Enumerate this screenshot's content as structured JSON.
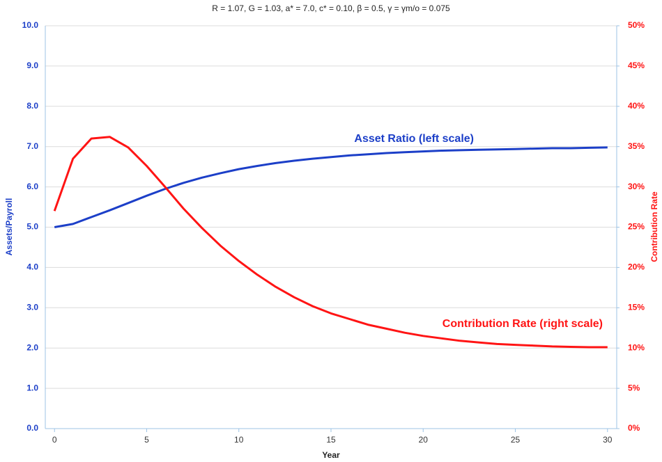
{
  "chart_data": {
    "type": "line",
    "title": "R = 1.07, G = 1.03, a* = 7.0, c* = 0.10, β = 0.5, γ = γm/o = 0.075",
    "x_label": "Year",
    "y_label": "Assets/Payroll",
    "y2_label": "Contribution Rate",
    "x": [
      0,
      1,
      2,
      3,
      4,
      5,
      6,
      7,
      8,
      9,
      10,
      11,
      12,
      13,
      14,
      15,
      16,
      17,
      18,
      19,
      20,
      21,
      22,
      23,
      24,
      25,
      26,
      27,
      28,
      29,
      30
    ],
    "xlim": [
      -0.5,
      30.5
    ],
    "xticks": [
      0,
      5,
      10,
      15,
      20,
      25,
      30
    ],
    "ylim": [
      0,
      10
    ],
    "yticks": [
      {
        "value": 0,
        "label": "0.0"
      },
      {
        "value": 1,
        "label": "1.0"
      },
      {
        "value": 2,
        "label": "2.0"
      },
      {
        "value": 3,
        "label": "3.0"
      },
      {
        "value": 4,
        "label": "4.0"
      },
      {
        "value": 5,
        "label": "5.0"
      },
      {
        "value": 6,
        "label": "6.0"
      },
      {
        "value": 7,
        "label": "7.0"
      },
      {
        "value": 8,
        "label": "8.0"
      },
      {
        "value": 9,
        "label": "9.0"
      },
      {
        "value": 10,
        "label": "10.0"
      }
    ],
    "y2lim": [
      0,
      50
    ],
    "y2ticks": [
      {
        "value": 0,
        "label": "0%"
      },
      {
        "value": 5,
        "label": "5%"
      },
      {
        "value": 10,
        "label": "10%"
      },
      {
        "value": 15,
        "label": "15%"
      },
      {
        "value": 20,
        "label": "20%"
      },
      {
        "value": 25,
        "label": "25%"
      },
      {
        "value": 30,
        "label": "30%"
      },
      {
        "value": 35,
        "label": "35%"
      },
      {
        "value": 40,
        "label": "40%"
      },
      {
        "value": 45,
        "label": "45%"
      },
      {
        "value": 50,
        "label": "50%"
      }
    ],
    "grid": true,
    "series": [
      {
        "name": "Asset Ratio (left scale)",
        "color": "#1c3fc8",
        "values": [
          5.0,
          5.08,
          5.25,
          5.42,
          5.6,
          5.78,
          5.95,
          6.1,
          6.23,
          6.34,
          6.44,
          6.52,
          6.59,
          6.65,
          6.7,
          6.74,
          6.78,
          6.81,
          6.84,
          6.86,
          6.88,
          6.9,
          6.91,
          6.92,
          6.93,
          6.94,
          6.95,
          6.96,
          6.96,
          6.97,
          6.98
        ]
      },
      {
        "name": "Contribution Rate (right scale)",
        "color": "#ff1414",
        "axis": "y2",
        "values": [
          27,
          33.5,
          36,
          36.2,
          34.9,
          32.6,
          30,
          27.3,
          24.9,
          22.7,
          20.8,
          19.1,
          17.6,
          16.3,
          15.2,
          14.3,
          13.6,
          12.9,
          12.4,
          11.9,
          11.5,
          11.2,
          10.9,
          10.7,
          10.5,
          10.4,
          10.3,
          10.2,
          10.15,
          10.1,
          10.1
        ]
      }
    ]
  }
}
